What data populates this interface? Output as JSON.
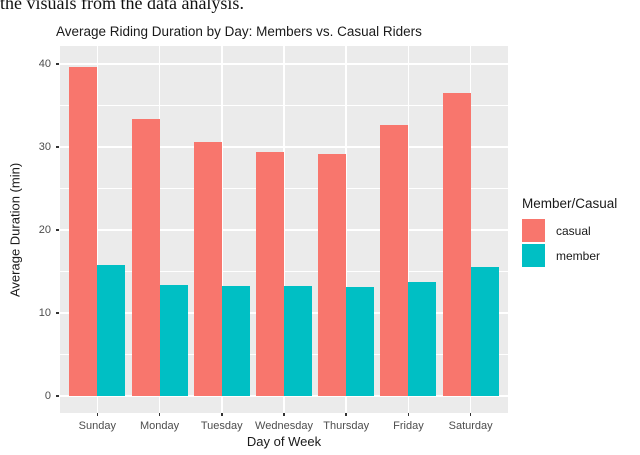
{
  "document": {
    "top_text": "the visuals from the data analysis."
  },
  "chart_data": {
    "type": "bar",
    "title": "Average Riding Duration by Day: Members vs. Casual Riders",
    "xlabel": "Day of Week",
    "ylabel": "Average Duration (min)",
    "categories": [
      "Sunday",
      "Monday",
      "Tuesday",
      "Wednesday",
      "Thursday",
      "Friday",
      "Saturday"
    ],
    "series": [
      {
        "name": "casual",
        "color": "#F8766D",
        "values": [
          39.6,
          33.4,
          30.6,
          29.4,
          29.2,
          32.6,
          36.5
        ]
      },
      {
        "name": "member",
        "color": "#00BFC4",
        "values": [
          15.8,
          13.4,
          13.2,
          13.3,
          13.1,
          13.7,
          15.5
        ]
      }
    ],
    "legend": {
      "title": "Member/Casual",
      "position": "right",
      "entries": [
        "casual",
        "member"
      ]
    },
    "ylim": [
      0,
      40
    ],
    "yticks": [
      0,
      10,
      20,
      30,
      40
    ],
    "minor_yticks": [
      5,
      15,
      25,
      35
    ],
    "grid": true,
    "panel_bg": "#EBEBEB",
    "grid_color": "#FFFFFF",
    "tick_label_color": "#4D4D4D",
    "tick_mark_color": "#333333",
    "text_color": "#1A1A1A"
  }
}
